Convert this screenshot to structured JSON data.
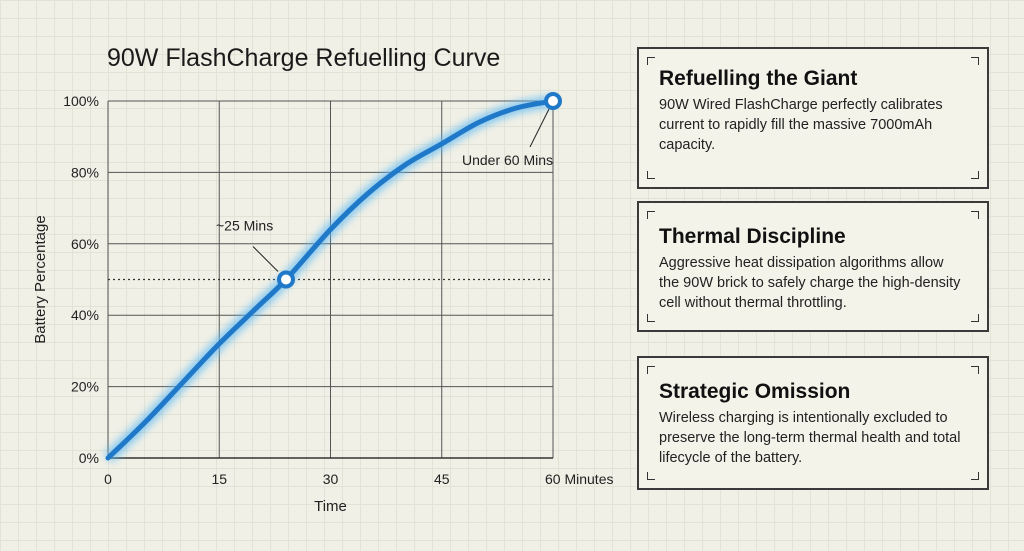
{
  "chart_data": {
    "type": "line",
    "title": "90W FlashCharge Refuelling Curve",
    "xlabel": "Time",
    "ylabel": "Battery Percentage",
    "xlim": [
      0,
      60
    ],
    "ylim": [
      0,
      100
    ],
    "x_ticks": [
      "0",
      "15",
      "30",
      "45",
      "60 Minutes"
    ],
    "x_tick_values": [
      0,
      15,
      30,
      45,
      60
    ],
    "y_ticks": [
      "0%",
      "20%",
      "40%",
      "60%",
      "80%",
      "100%"
    ],
    "y_tick_values": [
      0,
      20,
      40,
      60,
      80,
      100
    ],
    "grid": true,
    "series": [
      {
        "x": [
          0,
          5,
          10,
          15,
          20,
          24,
          30,
          35,
          40,
          45,
          50,
          55,
          60
        ],
        "y": [
          0,
          10,
          21,
          32,
          42,
          50,
          64,
          74,
          82,
          88,
          94,
          98,
          100
        ],
        "color": "#1f78c8"
      }
    ],
    "reference_line": {
      "y": 50,
      "style": "dotted"
    },
    "annotations": [
      {
        "text": "~25 Mins",
        "x": 24,
        "y": 50
      },
      {
        "text": "Under 60 Mins",
        "x": 60,
        "y": 100
      }
    ]
  },
  "panels": [
    {
      "title": "Refuelling the Giant",
      "body": "90W Wired FlashCharge perfectly calibrates current to rapidly fill the massive 7000mAh capacity."
    },
    {
      "title": "Thermal Discipline",
      "body": "Aggressive heat dissipation algorithms allow the 90W brick to safely charge the high-density cell without thermal throttling."
    },
    {
      "title": "Strategic Omission",
      "body": "Wireless charging is intentionally excluded to preserve the long-term thermal health and total lifecycle of the battery."
    }
  ]
}
